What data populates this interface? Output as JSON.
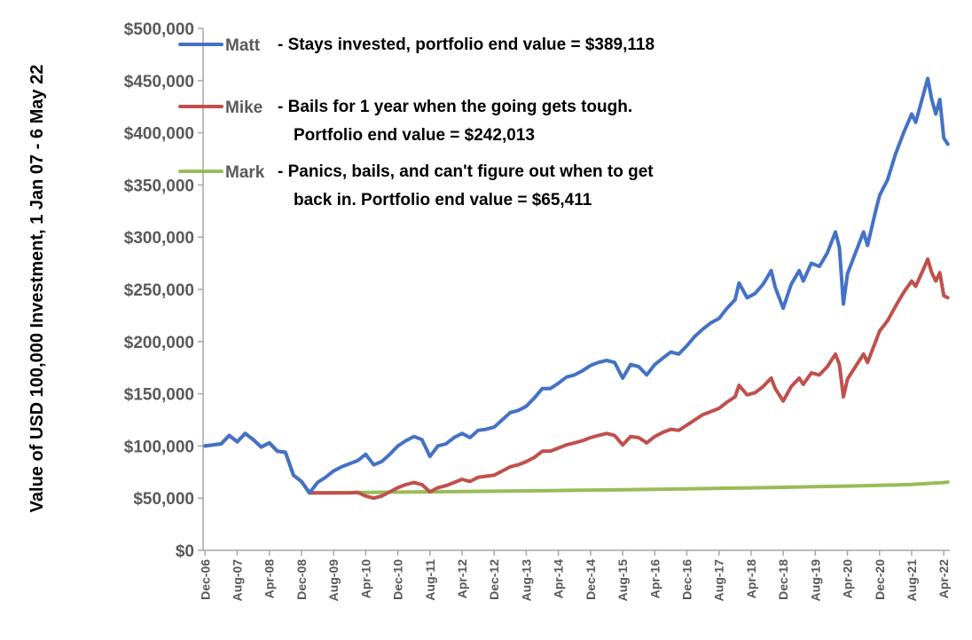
{
  "chart_data": {
    "type": "line",
    "ylabel": "Value of USD 100,000  Investment, 1 Jan 07 - 6 May 22",
    "ylim": [
      0,
      500000
    ],
    "y_ticks": [
      "$0",
      "$50,000",
      "$100,000",
      "$150,000",
      "$200,000",
      "$250,000",
      "$300,000",
      "$350,000",
      "$400,000",
      "$450,000",
      "$500,000"
    ],
    "x_ticks": [
      "Dec-06",
      "Aug-07",
      "Apr-08",
      "Dec-08",
      "Aug-09",
      "Apr-10",
      "Dec-10",
      "Aug-11",
      "Apr-12",
      "Dec-12",
      "Aug-13",
      "Apr-14",
      "Dec-14",
      "Aug-15",
      "Apr-16",
      "Dec-16",
      "Aug-17",
      "Apr-18",
      "Dec-18",
      "Aug-19",
      "Apr-20",
      "Dec-20",
      "Aug-21",
      "Apr-22"
    ],
    "x_start": "Dec-06",
    "x_end": "May-22",
    "grid": false,
    "legend_position": "top-left",
    "series": [
      {
        "name": "Matt",
        "description": [
          "- Stays invested, portfolio end value = $389,118"
        ],
        "color": "#4472C4",
        "points": [
          [
            "Dec-06",
            100000
          ],
          [
            "Feb-07",
            101000
          ],
          [
            "Apr-07",
            102000
          ],
          [
            "Jun-07",
            110000
          ],
          [
            "Aug-07",
            104000
          ],
          [
            "Oct-07",
            112000
          ],
          [
            "Dec-07",
            106000
          ],
          [
            "Feb-08",
            99000
          ],
          [
            "Apr-08",
            103000
          ],
          [
            "Jun-08",
            95000
          ],
          [
            "Aug-08",
            94000
          ],
          [
            "Oct-08",
            72000
          ],
          [
            "Dec-08",
            66000
          ],
          [
            "Feb-09",
            55000
          ],
          [
            "Apr-09",
            65000
          ],
          [
            "Jun-09",
            70000
          ],
          [
            "Aug-09",
            76000
          ],
          [
            "Oct-09",
            80000
          ],
          [
            "Dec-09",
            83000
          ],
          [
            "Feb-10",
            86000
          ],
          [
            "Apr-10",
            92000
          ],
          [
            "Jun-10",
            82000
          ],
          [
            "Aug-10",
            85000
          ],
          [
            "Oct-10",
            92000
          ],
          [
            "Dec-10",
            100000
          ],
          [
            "Feb-11",
            105000
          ],
          [
            "Apr-11",
            109000
          ],
          [
            "Jun-11",
            106000
          ],
          [
            "Aug-11",
            90000
          ],
          [
            "Oct-11",
            100000
          ],
          [
            "Dec-11",
            102000
          ],
          [
            "Feb-12",
            108000
          ],
          [
            "Apr-12",
            112000
          ],
          [
            "Jun-12",
            108000
          ],
          [
            "Aug-12",
            115000
          ],
          [
            "Oct-12",
            116000
          ],
          [
            "Dec-12",
            118000
          ],
          [
            "Feb-13",
            125000
          ],
          [
            "Apr-13",
            132000
          ],
          [
            "Jun-13",
            134000
          ],
          [
            "Aug-13",
            138000
          ],
          [
            "Oct-13",
            146000
          ],
          [
            "Dec-13",
            155000
          ],
          [
            "Feb-14",
            155000
          ],
          [
            "Apr-14",
            160000
          ],
          [
            "Jun-14",
            166000
          ],
          [
            "Aug-14",
            168000
          ],
          [
            "Oct-14",
            172000
          ],
          [
            "Dec-14",
            177000
          ],
          [
            "Feb-15",
            180000
          ],
          [
            "Apr-15",
            182000
          ],
          [
            "Jun-15",
            180000
          ],
          [
            "Aug-15",
            165000
          ],
          [
            "Oct-15",
            178000
          ],
          [
            "Dec-15",
            176000
          ],
          [
            "Feb-16",
            168000
          ],
          [
            "Apr-16",
            178000
          ],
          [
            "Jun-16",
            184000
          ],
          [
            "Aug-16",
            190000
          ],
          [
            "Oct-16",
            188000
          ],
          [
            "Dec-16",
            196000
          ],
          [
            "Feb-17",
            205000
          ],
          [
            "Apr-17",
            212000
          ],
          [
            "Jun-17",
            218000
          ],
          [
            "Aug-17",
            222000
          ],
          [
            "Oct-17",
            232000
          ],
          [
            "Dec-17",
            240000
          ],
          [
            "Jan-18",
            256000
          ],
          [
            "Mar-18",
            242000
          ],
          [
            "May-18",
            246000
          ],
          [
            "Jul-18",
            255000
          ],
          [
            "Sep-18",
            268000
          ],
          [
            "Oct-18",
            252000
          ],
          [
            "Dec-18",
            232000
          ],
          [
            "Feb-19",
            255000
          ],
          [
            "Apr-19",
            268000
          ],
          [
            "May-19",
            258000
          ],
          [
            "Jul-19",
            275000
          ],
          [
            "Sep-19",
            272000
          ],
          [
            "Nov-19",
            285000
          ],
          [
            "Jan-20",
            305000
          ],
          [
            "Feb-20",
            290000
          ],
          [
            "Mar-20",
            236000
          ],
          [
            "Apr-20",
            265000
          ],
          [
            "Jun-20",
            285000
          ],
          [
            "Aug-20",
            305000
          ],
          [
            "Sep-20",
            292000
          ],
          [
            "Nov-20",
            325000
          ],
          [
            "Dec-20",
            340000
          ],
          [
            "Feb-21",
            355000
          ],
          [
            "Apr-21",
            380000
          ],
          [
            "Jun-21",
            400000
          ],
          [
            "Aug-21",
            418000
          ],
          [
            "Sep-21",
            410000
          ],
          [
            "Nov-21",
            438000
          ],
          [
            "Dec-21",
            452000
          ],
          [
            "Jan-22",
            432000
          ],
          [
            "Feb-22",
            418000
          ],
          [
            "Mar-22",
            432000
          ],
          [
            "Apr-22",
            395000
          ],
          [
            "May-22",
            389118
          ]
        ]
      },
      {
        "name": "Mike",
        "description": [
          "- Bails for 1 year when the going gets tough.",
          "Portfolio end value = $242,013"
        ],
        "color": "#C0504D",
        "points": [
          [
            "Dec-06",
            100000
          ],
          [
            "Feb-07",
            101000
          ],
          [
            "Apr-07",
            102000
          ],
          [
            "Jun-07",
            110000
          ],
          [
            "Aug-07",
            104000
          ],
          [
            "Oct-07",
            112000
          ],
          [
            "Dec-07",
            106000
          ],
          [
            "Feb-08",
            99000
          ],
          [
            "Apr-08",
            103000
          ],
          [
            "Jun-08",
            95000
          ],
          [
            "Aug-08",
            94000
          ],
          [
            "Oct-08",
            72000
          ],
          [
            "Dec-08",
            66000
          ],
          [
            "Feb-09",
            55000
          ],
          [
            "Apr-09",
            55000
          ],
          [
            "Dec-09",
            55000
          ],
          [
            "Feb-10",
            55500
          ],
          [
            "Apr-10",
            52000
          ],
          [
            "Jun-10",
            50000
          ],
          [
            "Aug-10",
            52000
          ],
          [
            "Oct-10",
            56000
          ],
          [
            "Dec-10",
            60000
          ],
          [
            "Feb-11",
            63000
          ],
          [
            "Apr-11",
            65000
          ],
          [
            "Jun-11",
            63000
          ],
          [
            "Aug-11",
            56000
          ],
          [
            "Oct-11",
            60000
          ],
          [
            "Dec-11",
            62000
          ],
          [
            "Feb-12",
            65000
          ],
          [
            "Apr-12",
            68000
          ],
          [
            "Jun-12",
            66000
          ],
          [
            "Aug-12",
            70000
          ],
          [
            "Oct-12",
            71000
          ],
          [
            "Dec-12",
            72000
          ],
          [
            "Feb-13",
            76000
          ],
          [
            "Apr-13",
            80000
          ],
          [
            "Jun-13",
            82000
          ],
          [
            "Aug-13",
            85000
          ],
          [
            "Oct-13",
            89000
          ],
          [
            "Dec-13",
            95000
          ],
          [
            "Feb-14",
            95000
          ],
          [
            "Apr-14",
            98000
          ],
          [
            "Jun-14",
            101000
          ],
          [
            "Aug-14",
            103000
          ],
          [
            "Oct-14",
            105000
          ],
          [
            "Dec-14",
            108000
          ],
          [
            "Feb-15",
            110000
          ],
          [
            "Apr-15",
            112000
          ],
          [
            "Jun-15",
            110000
          ],
          [
            "Aug-15",
            101000
          ],
          [
            "Oct-15",
            109000
          ],
          [
            "Dec-15",
            108000
          ],
          [
            "Feb-16",
            103000
          ],
          [
            "Apr-16",
            109000
          ],
          [
            "Jun-16",
            113000
          ],
          [
            "Aug-16",
            116000
          ],
          [
            "Oct-16",
            115000
          ],
          [
            "Dec-16",
            120000
          ],
          [
            "Feb-17",
            125000
          ],
          [
            "Apr-17",
            130000
          ],
          [
            "Jun-17",
            133000
          ],
          [
            "Aug-17",
            136000
          ],
          [
            "Oct-17",
            142000
          ],
          [
            "Dec-17",
            147000
          ],
          [
            "Jan-18",
            158000
          ],
          [
            "Mar-18",
            149000
          ],
          [
            "May-18",
            151000
          ],
          [
            "Jul-18",
            157000
          ],
          [
            "Sep-18",
            165000
          ],
          [
            "Oct-18",
            155000
          ],
          [
            "Dec-18",
            143000
          ],
          [
            "Feb-19",
            157000
          ],
          [
            "Apr-19",
            165000
          ],
          [
            "May-19",
            159000
          ],
          [
            "Jul-19",
            170000
          ],
          [
            "Sep-19",
            168000
          ],
          [
            "Nov-19",
            176000
          ],
          [
            "Jan-20",
            188000
          ],
          [
            "Feb-20",
            178000
          ],
          [
            "Mar-20",
            147000
          ],
          [
            "Apr-20",
            164000
          ],
          [
            "Jun-20",
            176000
          ],
          [
            "Aug-20",
            188000
          ],
          [
            "Sep-20",
            180000
          ],
          [
            "Nov-20",
            200000
          ],
          [
            "Dec-20",
            210000
          ],
          [
            "Feb-21",
            220000
          ],
          [
            "Apr-21",
            234000
          ],
          [
            "Jun-21",
            247000
          ],
          [
            "Aug-21",
            258000
          ],
          [
            "Sep-21",
            253000
          ],
          [
            "Nov-21",
            270000
          ],
          [
            "Dec-21",
            279000
          ],
          [
            "Jan-22",
            266000
          ],
          [
            "Feb-22",
            258000
          ],
          [
            "Mar-22",
            266000
          ],
          [
            "Apr-22",
            244000
          ],
          [
            "May-22",
            242013
          ]
        ]
      },
      {
        "name": "Mark",
        "description": [
          "- Panics, bails, and can't figure out when to get",
          "back in. Portfolio end value = $65,411"
        ],
        "color": "#9BBB59",
        "points": [
          [
            "Dec-06",
            100000
          ],
          [
            "Feb-07",
            101000
          ],
          [
            "Apr-07",
            102000
          ],
          [
            "Jun-07",
            110000
          ],
          [
            "Aug-07",
            104000
          ],
          [
            "Oct-07",
            112000
          ],
          [
            "Dec-07",
            106000
          ],
          [
            "Feb-08",
            99000
          ],
          [
            "Apr-08",
            103000
          ],
          [
            "Jun-08",
            95000
          ],
          [
            "Aug-08",
            94000
          ],
          [
            "Oct-08",
            72000
          ],
          [
            "Dec-08",
            66000
          ],
          [
            "Feb-09",
            55000
          ],
          [
            "Aug-09",
            55200
          ],
          [
            "Apr-10",
            55500
          ],
          [
            "Dec-10",
            55800
          ],
          [
            "Aug-11",
            56000
          ],
          [
            "Apr-12",
            56300
          ],
          [
            "Dec-12",
            56600
          ],
          [
            "Aug-13",
            57000
          ],
          [
            "Apr-14",
            57300
          ],
          [
            "Dec-14",
            57700
          ],
          [
            "Aug-15",
            58100
          ],
          [
            "Apr-16",
            58500
          ],
          [
            "Dec-16",
            58900
          ],
          [
            "Aug-17",
            59400
          ],
          [
            "Apr-18",
            59900
          ],
          [
            "Dec-18",
            60400
          ],
          [
            "Aug-19",
            61000
          ],
          [
            "Apr-20",
            61600
          ],
          [
            "Dec-20",
            62300
          ],
          [
            "Aug-21",
            63100
          ],
          [
            "Apr-22",
            65000
          ],
          [
            "May-22",
            65411
          ]
        ]
      }
    ]
  }
}
